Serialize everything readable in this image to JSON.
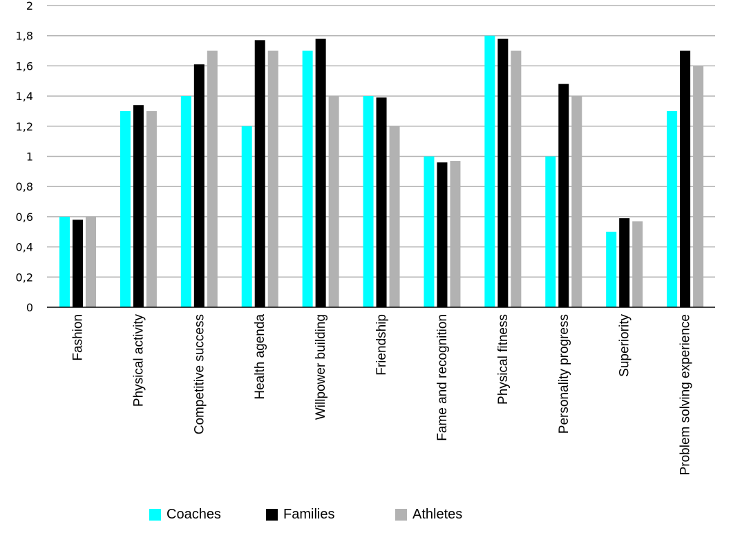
{
  "chart_data": {
    "type": "bar",
    "title": "",
    "xlabel": "",
    "ylabel": "",
    "ylim": [
      0,
      2
    ],
    "yticks": [
      0,
      0.2,
      0.4,
      0.6,
      0.8,
      1,
      1.2,
      1.4,
      1.6,
      1.8,
      2
    ],
    "ytick_labels": [
      "0",
      "0,2",
      "0,4",
      "0,6",
      "0,8",
      "1",
      "1,2",
      "1,4",
      "1,6",
      "1,8",
      "2"
    ],
    "grid": true,
    "legend_position": "bottom",
    "categories": [
      "Fashion",
      "Physical activity",
      "Competitive success",
      "Health agenda",
      "Willpower building",
      "Friendship",
      "Fame and recognition",
      "Physical fitness",
      "Personality progress",
      "Superiority",
      "Problem solving experience"
    ],
    "series": [
      {
        "name": "Coaches",
        "color": "#00FFFF",
        "values": [
          0.6,
          1.3,
          1.4,
          1.2,
          1.7,
          1.4,
          1.0,
          1.8,
          1.0,
          0.5,
          1.3
        ]
      },
      {
        "name": "Families",
        "color": "#000000",
        "values": [
          0.58,
          1.34,
          1.61,
          1.77,
          1.78,
          1.39,
          0.96,
          1.78,
          1.48,
          0.59,
          1.7
        ]
      },
      {
        "name": "Athletes",
        "color": "#B2B2B2",
        "values": [
          0.6,
          1.3,
          1.7,
          1.7,
          1.4,
          1.2,
          0.97,
          1.7,
          1.4,
          0.57,
          1.6
        ]
      }
    ]
  },
  "legend": {
    "items": [
      {
        "label": "Coaches",
        "color": "#00FFFF"
      },
      {
        "label": "Families",
        "color": "#000000"
      },
      {
        "label": "Athletes",
        "color": "#B2B2B2"
      }
    ]
  }
}
